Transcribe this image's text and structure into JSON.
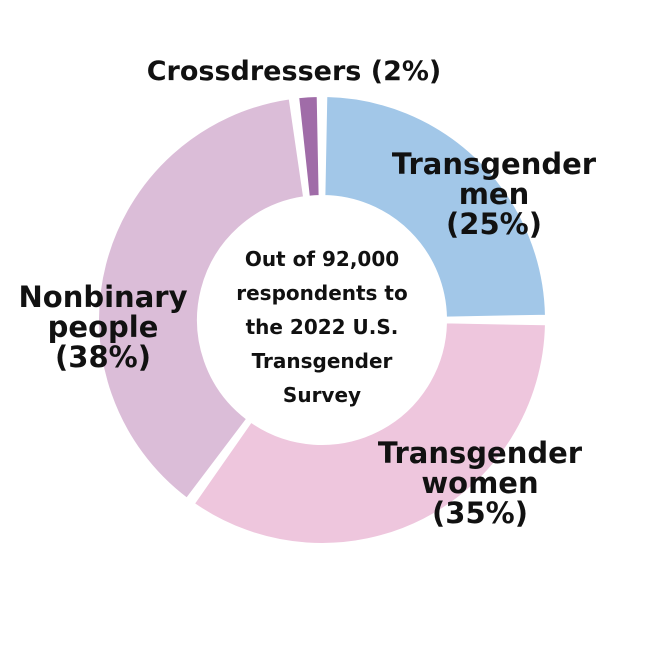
{
  "chart_data": {
    "type": "pie",
    "variant": "donut",
    "center_text": [
      "Out of 92,000",
      "respondents to",
      "the 2022 U.S.",
      "Transgender",
      "Survey"
    ],
    "slices": [
      {
        "name": "Transgender men",
        "value": 25,
        "color": "#a2c7e8",
        "label_lines": [
          "Transgender",
          "men",
          "(25%)"
        ]
      },
      {
        "name": "Transgender women",
        "value": 35,
        "color": "#eec6dd",
        "label_lines": [
          "Transgender",
          "women",
          "(35%)"
        ]
      },
      {
        "name": "Nonbinary people",
        "value": 38,
        "color": "#dbbdd8",
        "label_lines": [
          "Nonbinary",
          "people",
          "(38%)"
        ]
      },
      {
        "name": "Crossdressers",
        "value": 2,
        "color": "#a06ca8",
        "label_lines": [
          "Crossdressers (2%)"
        ]
      }
    ]
  }
}
